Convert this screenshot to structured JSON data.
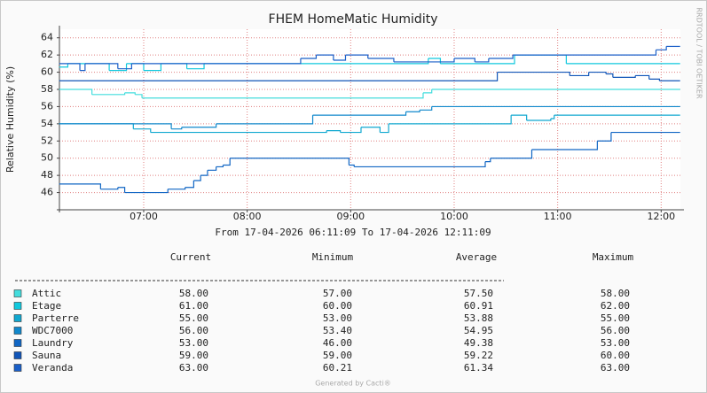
{
  "chart_data": {
    "type": "line",
    "step": true,
    "title": "FHEM HomeMatic Humidity",
    "y_label": "Relative Humidity (%)",
    "side_label": "RRDTOOL / TOBI OETIKER",
    "period": "From 17-04-2026 06:11:09 To 17-04-2026 12:11:09",
    "footer": "Generated by Cacti®",
    "grid": true,
    "xlim": [
      "06:11:09",
      "12:11:09"
    ],
    "xticks": [
      "07:00",
      "08:00",
      "09:00",
      "10:00",
      "11:00",
      "12:00"
    ],
    "ylim": [
      44,
      65
    ],
    "yticks": [
      46,
      48,
      50,
      52,
      54,
      56,
      58,
      60,
      62,
      64
    ],
    "legend_columns": [
      "Current",
      "Minimum",
      "Average",
      "Maximum"
    ],
    "series": [
      {
        "name": "Attic",
        "color": "#44dddd",
        "x": [
          "06:11",
          "06:30",
          "06:49",
          "06:55",
          "06:59",
          "09:42",
          "09:47",
          "12:11"
        ],
        "values": [
          58,
          57.4,
          57.6,
          57.4,
          57,
          57.6,
          58,
          58
        ],
        "stats": [
          "58.00",
          "57.00",
          "57.50",
          "58.00"
        ]
      },
      {
        "name": "Etage",
        "color": "#11c8dd",
        "x": [
          "06:11",
          "06:16",
          "06:40",
          "06:50",
          "07:00",
          "07:10",
          "07:25",
          "07:35",
          "09:45",
          "09:52",
          "10:35",
          "11:05",
          "12:11"
        ],
        "values": [
          60.6,
          61,
          60.2,
          61,
          60.2,
          61,
          60.4,
          61,
          61.6,
          61,
          62,
          61,
          61
        ],
        "stats": [
          "61.00",
          "60.00",
          "60.91",
          "62.00"
        ]
      },
      {
        "name": "Parterre",
        "color": "#11a8d0",
        "x": [
          "06:11",
          "06:54",
          "07:04",
          "08:46",
          "08:54",
          "09:06",
          "09:17",
          "09:22",
          "10:33",
          "10:42",
          "10:56",
          "10:58",
          "12:11"
        ],
        "values": [
          54,
          53.4,
          53,
          53.2,
          53,
          53.6,
          53,
          54,
          55,
          54.4,
          54.6,
          55,
          55
        ],
        "stats": [
          "55.00",
          "53.00",
          "53.88",
          "55.00"
        ]
      },
      {
        "name": "WDC7000",
        "color": "#1188cc",
        "x": [
          "06:11",
          "07:16",
          "07:22",
          "07:42",
          "08:38",
          "09:32",
          "09:40",
          "09:47",
          "12:11"
        ],
        "values": [
          54,
          53.4,
          53.6,
          54,
          55,
          55.4,
          55.6,
          56,
          56
        ],
        "stats": [
          "56.00",
          "53.40",
          "54.95",
          "56.00"
        ]
      },
      {
        "name": "Laundry",
        "color": "#1166c4",
        "x": [
          "06:11",
          "06:35",
          "06:45",
          "06:49",
          "07:14",
          "07:24",
          "07:29",
          "07:33",
          "07:37",
          "07:42",
          "07:46",
          "07:50",
          "08:59",
          "09:02",
          "10:18",
          "10:21",
          "10:45",
          "11:23",
          "11:31",
          "12:11"
        ],
        "values": [
          47,
          46.4,
          46.6,
          46,
          46.4,
          46.6,
          47.4,
          48,
          48.6,
          49,
          49.2,
          50,
          49.2,
          49,
          49.6,
          50,
          51,
          52,
          53,
          53
        ],
        "stats": [
          "53.00",
          "46.00",
          "49.38",
          "53.00"
        ]
      },
      {
        "name": "Sauna",
        "color": "#1155b8",
        "x": [
          "06:11",
          "10:25",
          "11:07",
          "11:18",
          "11:28",
          "11:32",
          "11:45",
          "11:53",
          "11:59",
          "12:11"
        ],
        "values": [
          59,
          60,
          59.6,
          60,
          59.8,
          59.4,
          59.6,
          59.2,
          59,
          59
        ],
        "stats": [
          "59.00",
          "59.00",
          "59.22",
          "60.00"
        ]
      },
      {
        "name": "Veranda",
        "color": "#1a5fc8",
        "x": [
          "06:11",
          "06:23",
          "06:26",
          "06:45",
          "06:53",
          "08:31",
          "08:40",
          "08:50",
          "08:57",
          "09:10",
          "09:25",
          "10:00",
          "10:12",
          "10:20",
          "10:34",
          "11:57",
          "12:03",
          "12:11"
        ],
        "values": [
          61,
          60.2,
          61,
          60.4,
          61,
          61.6,
          62,
          61.4,
          62,
          61.6,
          61.2,
          61.6,
          61.2,
          61.6,
          62,
          62.6,
          63,
          63
        ],
        "stats": [
          "63.00",
          "60.21",
          "61.34",
          "63.00"
        ]
      }
    ]
  }
}
